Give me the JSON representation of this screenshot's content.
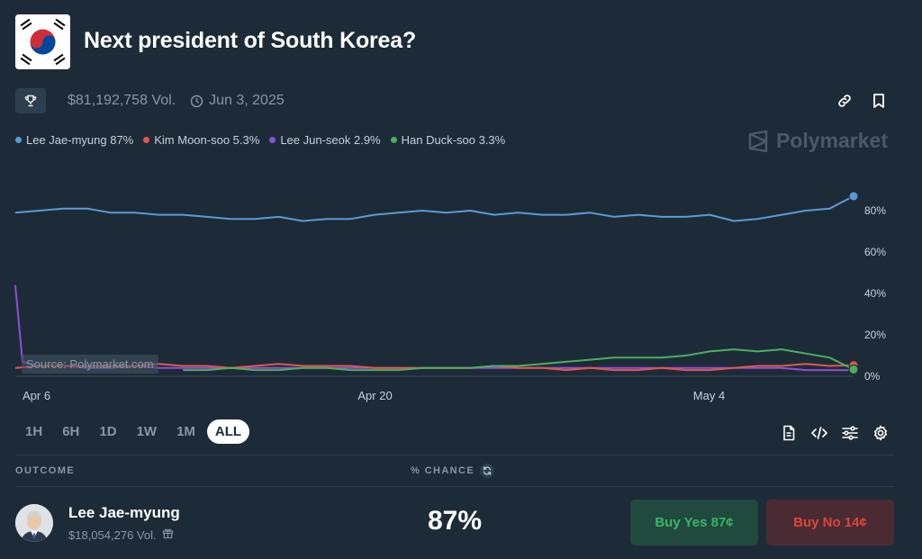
{
  "header": {
    "title": "Next president of South Korea?",
    "volume": "$81,192,758 Vol.",
    "end_date": "Jun 3, 2025",
    "brand": "Polymarket"
  },
  "legend": [
    {
      "label": "Lee Jae-myung 87%",
      "color": "#5b9bd5"
    },
    {
      "label": "Kim Moon-soo 5.3%",
      "color": "#e2564f"
    },
    {
      "label": "Lee Jun-seok 2.9%",
      "color": "#8e4fd6"
    },
    {
      "label": "Han Duck-soo 3.3%",
      "color": "#4caf5b"
    }
  ],
  "chart_data": {
    "type": "line",
    "title": "Next president of South Korea?",
    "source": "Source: Polymarket.com",
    "x_ticks": [
      "Apr 6",
      "Apr 20",
      "May 4"
    ],
    "y_ticks": [
      "80%",
      "60%",
      "40%",
      "20%",
      "0%"
    ],
    "ylim": [
      0,
      100
    ],
    "x_range_days": [
      0,
      35
    ],
    "series": [
      {
        "name": "Lee Jae-myung",
        "color": "#5b9bd5",
        "x": [
          0,
          1,
          2,
          3,
          4,
          5,
          6,
          7,
          8,
          9,
          10,
          11,
          12,
          13,
          14,
          15,
          16,
          17,
          18,
          19,
          20,
          21,
          22,
          23,
          24,
          25,
          26,
          27,
          28,
          29,
          30,
          31,
          32,
          33,
          34,
          35
        ],
        "values": [
          79,
          80,
          81,
          81,
          79,
          79,
          78,
          78,
          77,
          76,
          76,
          77,
          75,
          76,
          76,
          78,
          79,
          80,
          79,
          80,
          78,
          79,
          78,
          78,
          79,
          77,
          78,
          77,
          77,
          78,
          75,
          76,
          78,
          80,
          81,
          87
        ]
      },
      {
        "name": "Kim Moon-soo",
        "color": "#e2564f",
        "x": [
          0,
          1,
          2,
          3,
          4,
          5,
          6,
          7,
          8,
          9,
          10,
          11,
          12,
          13,
          14,
          15,
          16,
          17,
          18,
          19,
          20,
          21,
          22,
          23,
          24,
          25,
          26,
          27,
          28,
          29,
          30,
          31,
          32,
          33,
          34,
          35
        ],
        "values": [
          4,
          5,
          5,
          5,
          5,
          5,
          6,
          5,
          5,
          4,
          5,
          6,
          5,
          5,
          5,
          4,
          4,
          4,
          4,
          4,
          5,
          4,
          4,
          3,
          4,
          3,
          3,
          4,
          3,
          3,
          4,
          5,
          5,
          6,
          5,
          5.3
        ]
      },
      {
        "name": "Lee Jun-seok",
        "color": "#8e4fd6",
        "x": [
          0,
          0.3,
          1,
          2,
          3,
          4,
          5,
          6,
          7,
          8,
          9,
          10,
          11,
          12,
          13,
          14,
          15,
          16,
          17,
          18,
          19,
          20,
          21,
          22,
          23,
          24,
          25,
          26,
          27,
          28,
          29,
          30,
          31,
          32,
          33,
          34,
          35
        ],
        "values": [
          44,
          7,
          5,
          5,
          4,
          4,
          5,
          4,
          4,
          4,
          4,
          4,
          4,
          4,
          4,
          4,
          4,
          4,
          4,
          4,
          4,
          4,
          4,
          4,
          4,
          4,
          4,
          4,
          4,
          4,
          4,
          4,
          4,
          4,
          3,
          3,
          2.9
        ]
      },
      {
        "name": "Han Duck-soo",
        "color": "#4caf5b",
        "x": [
          7,
          8,
          9,
          10,
          11,
          12,
          13,
          14,
          15,
          16,
          17,
          18,
          19,
          20,
          21,
          22,
          23,
          24,
          25,
          26,
          27,
          28,
          29,
          30,
          31,
          32,
          33,
          34,
          35
        ],
        "values": [
          3,
          3,
          4,
          3,
          3,
          4,
          4,
          3,
          3,
          3,
          4,
          4,
          4,
          5,
          5,
          6,
          7,
          8,
          9,
          9,
          9,
          10,
          12,
          13,
          12,
          13,
          11,
          9,
          3.3
        ]
      }
    ]
  },
  "time_ranges": [
    "1H",
    "6H",
    "1D",
    "1W",
    "1M",
    "ALL"
  ],
  "selected_range": "ALL",
  "table": {
    "outcome_header": "OUTCOME",
    "chance_header": "% CHANCE"
  },
  "outcome": {
    "name": "Lee Jae-myung",
    "volume": "$18,054,276 Vol.",
    "chance": "87%",
    "buy_yes": "Buy Yes 87¢",
    "buy_no": "Buy No 14¢"
  }
}
